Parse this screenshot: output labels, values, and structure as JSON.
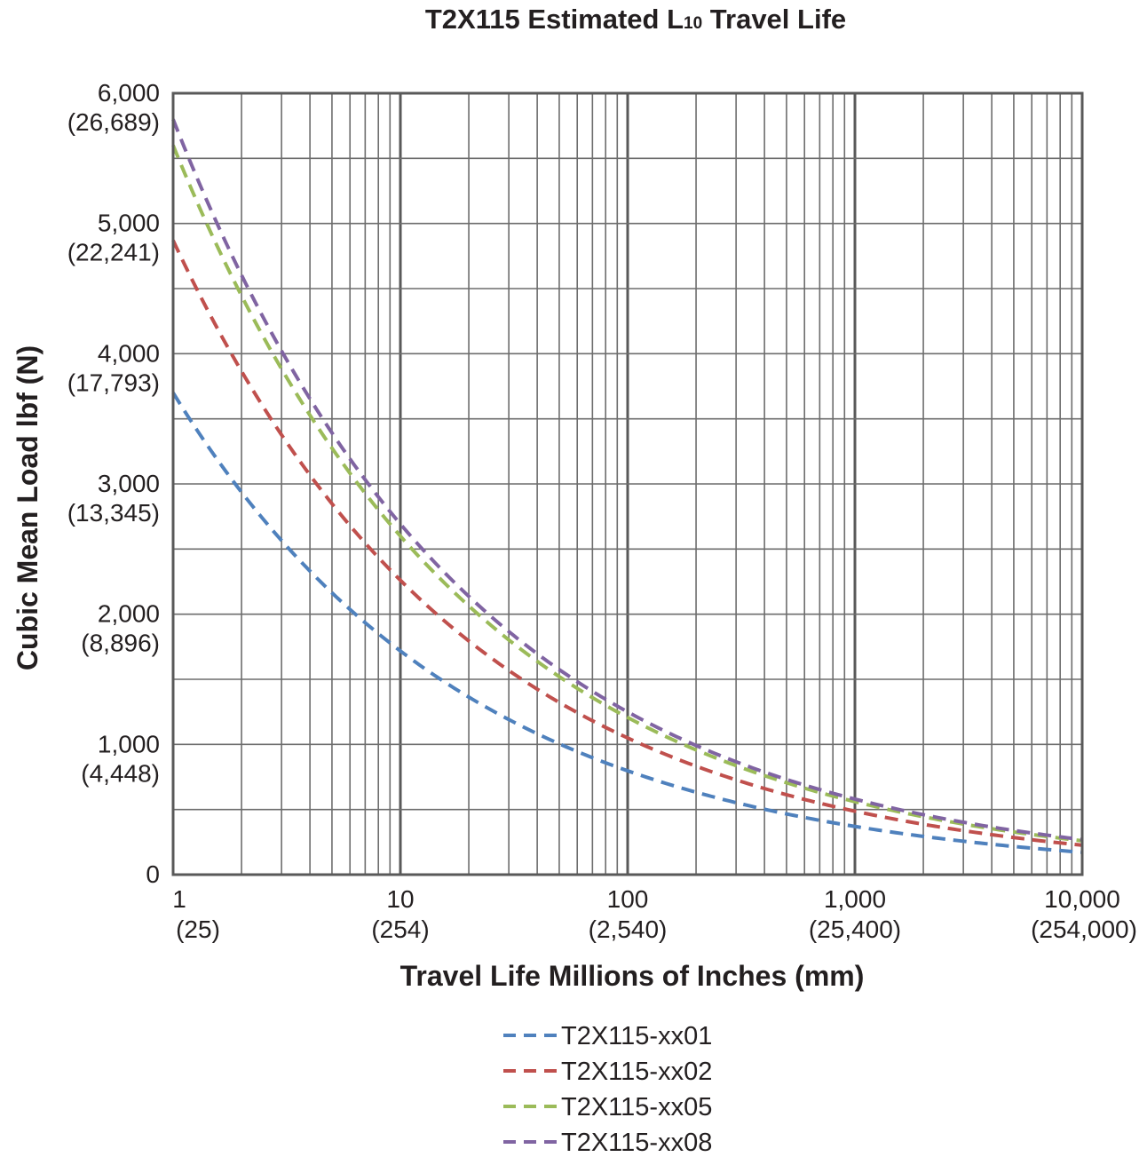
{
  "chart_data": {
    "type": "line",
    "title": {
      "main": "T2X115 Estimated L",
      "subscript": "10",
      "suffix": " Travel Life"
    },
    "xlabel": "Travel Life Millions of Inches (mm)",
    "ylabel": "Cubic Mean Load lbf (N)",
    "x_scale": "log",
    "xlim": [
      1,
      10000
    ],
    "ylim": [
      0,
      6000
    ],
    "grid": true,
    "legend_position": "bottom",
    "x_ticks": [
      {
        "value": 1,
        "label": "1",
        "sublabel": "(25)"
      },
      {
        "value": 10,
        "label": "10",
        "sublabel": "(254)"
      },
      {
        "value": 100,
        "label": "100",
        "sublabel": "(2,540)"
      },
      {
        "value": 1000,
        "label": "1,000",
        "sublabel": "(25,400)"
      },
      {
        "value": 10000,
        "label": "10,000",
        "sublabel": "(254,000)"
      }
    ],
    "y_ticks": [
      {
        "value": 0,
        "label": "0",
        "sublabel": ""
      },
      {
        "value": 1000,
        "label": "1,000",
        "sublabel": "(4,448)"
      },
      {
        "value": 2000,
        "label": "2,000",
        "sublabel": "(8,896)"
      },
      {
        "value": 3000,
        "label": "3,000",
        "sublabel": "(13,345)"
      },
      {
        "value": 4000,
        "label": "4,000",
        "sublabel": "(17,793)"
      },
      {
        "value": 5000,
        "label": "5,000",
        "sublabel": "(22,241)"
      },
      {
        "value": 6000,
        "label": "6,000",
        "sublabel": "(26,689)"
      }
    ],
    "series": [
      {
        "name": "T2X115-xx01",
        "color": "#4f81bd",
        "curve": "power",
        "C": 3700,
        "exponent": -0.3333
      },
      {
        "name": "T2X115-xx02",
        "color": "#c0504d",
        "curve": "power",
        "C": 4870,
        "exponent": -0.3333
      },
      {
        "name": "T2X115-xx05",
        "color": "#9bbb59",
        "curve": "power",
        "C": 5600,
        "exponent": -0.3333
      },
      {
        "name": "T2X115-xx08",
        "color": "#8064a2",
        "curve": "power",
        "C": 5800,
        "exponent": -0.3333
      }
    ]
  }
}
